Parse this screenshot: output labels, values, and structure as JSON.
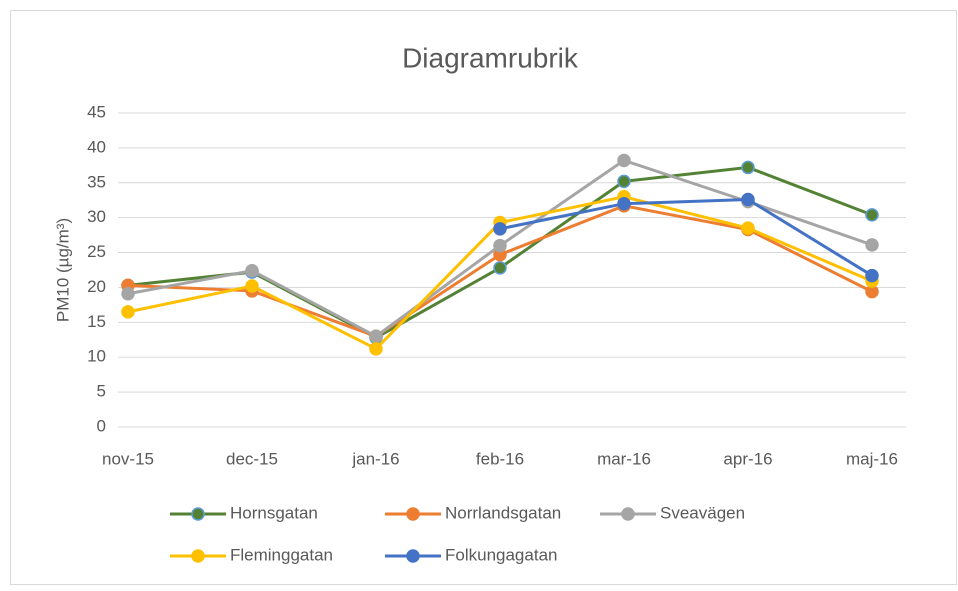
{
  "chart_data": {
    "type": "line",
    "title": "Diagramrubrik",
    "y_label": "PM10 (µg/m³)",
    "categories": [
      "nov-15",
      "dec-15",
      "jan-16",
      "feb-16",
      "mar-16",
      "apr-16",
      "maj-16"
    ],
    "series": [
      {
        "name": "Hornsgatan",
        "color": "#548235",
        "marker_edge": "#5b9bd5",
        "values": [
          20.3,
          22.2,
          12.8,
          22.8,
          35.2,
          37.2,
          30.4
        ]
      },
      {
        "name": "Norrlandsgatan",
        "color": "#ed7d31",
        "values": [
          20.3,
          19.5,
          13.0,
          24.7,
          31.7,
          28.3,
          19.4
        ]
      },
      {
        "name": "Sveavägen",
        "color": "#a5a5a5",
        "values": [
          19.1,
          22.4,
          13.0,
          26.0,
          38.2,
          32.3,
          26.1
        ]
      },
      {
        "name": "Fleminggatan",
        "color": "#ffc000",
        "values": [
          16.5,
          20.2,
          11.2,
          29.3,
          33.0,
          28.5,
          20.9
        ]
      },
      {
        "name": "Folkungagatan",
        "color": "#4472c4",
        "values": [
          null,
          null,
          null,
          28.4,
          32.0,
          32.6,
          21.7
        ]
      }
    ],
    "ylim": [
      0,
      45
    ],
    "yticks": [
      0,
      5,
      10,
      15,
      20,
      25,
      30,
      35,
      40,
      45
    ],
    "grid": true,
    "legend": "bottom"
  }
}
